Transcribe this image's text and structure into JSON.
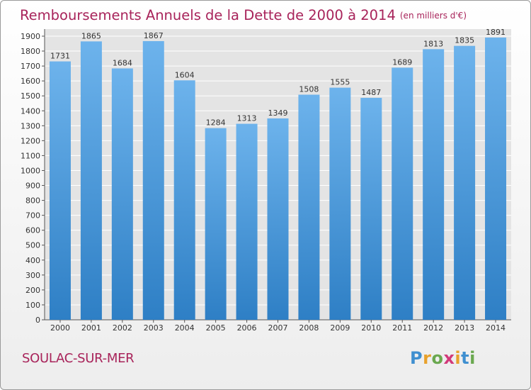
{
  "chart_data": {
    "type": "bar",
    "title": "Remboursements Annuels de la Dette de 2000 à 2014",
    "subtitle": "(en milliers d'€)",
    "categories": [
      "2000",
      "2001",
      "2002",
      "2003",
      "2004",
      "2005",
      "2006",
      "2007",
      "2008",
      "2009",
      "2010",
      "2011",
      "2012",
      "2013",
      "2014"
    ],
    "values": [
      1731,
      1865,
      1684,
      1867,
      1604,
      1284,
      1313,
      1349,
      1508,
      1555,
      1487,
      1689,
      1813,
      1835,
      1891
    ],
    "ylim": [
      0,
      1900
    ],
    "yticks": [
      0,
      100,
      200,
      300,
      400,
      500,
      600,
      700,
      800,
      900,
      1000,
      1100,
      1200,
      1300,
      1400,
      1500,
      1600,
      1700,
      1800,
      1900
    ],
    "xlabel": "",
    "ylabel": "",
    "grid": true
  },
  "footer": {
    "commune": "SOULAC-SUR-MER",
    "logo": {
      "p": "P",
      "r": "r",
      "o": "o",
      "x": "x",
      "i1": "i",
      "t": "t",
      "i2": "i"
    }
  },
  "colors": {
    "bar_light": "#6db3ec",
    "bar_dark": "#2e7fc5",
    "title": "#a8235a",
    "grid": "#ffffff",
    "plot_bg": "#e4e4e4"
  }
}
